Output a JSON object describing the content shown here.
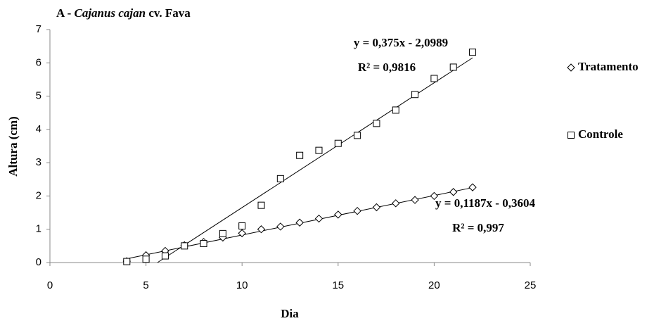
{
  "chart_data": {
    "type": "scatter",
    "title": [
      "A -",
      "Cajanus cajan",
      "cv. Fava"
    ],
    "x_label": "Dia",
    "y_label": "Altura (cm)",
    "xlim": [
      0,
      25
    ],
    "xticks": [
      0,
      5,
      10,
      15,
      20,
      25
    ],
    "ylim": [
      0,
      7
    ],
    "yticks": [
      0,
      1,
      2,
      3,
      4,
      5,
      6,
      7
    ],
    "x": [
      4,
      5,
      6,
      7,
      8,
      9,
      10,
      11,
      12,
      13,
      14,
      15,
      16,
      17,
      18,
      19,
      20,
      21,
      22
    ],
    "series": [
      {
        "name": "Tratamento",
        "color": "#000000",
        "marker": "diamond",
        "values": [
          0.04,
          0.22,
          0.35,
          0.52,
          0.62,
          0.75,
          0.88,
          1.0,
          1.08,
          1.2,
          1.32,
          1.44,
          1.55,
          1.66,
          1.78,
          1.88,
          2.0,
          2.12,
          2.26
        ],
        "trendline": {
          "slope": 0.1187,
          "intercept": -0.3604,
          "equation": "y = 0,1187x - 0,3604",
          "r2_label": "R² = 0,997"
        }
      },
      {
        "name": "Controle",
        "color": "#000000",
        "marker": "square",
        "values": [
          0.03,
          0.1,
          0.2,
          0.5,
          0.57,
          0.87,
          1.1,
          1.72,
          2.52,
          3.22,
          3.37,
          3.58,
          3.82,
          4.18,
          4.58,
          5.05,
          5.53,
          5.87,
          6.32
        ],
        "trendline": {
          "slope": 0.375,
          "intercept": -2.0989,
          "equation": "y = 0,375x - 2,0989",
          "r2_label": "R² = 0,9816"
        }
      }
    ]
  }
}
